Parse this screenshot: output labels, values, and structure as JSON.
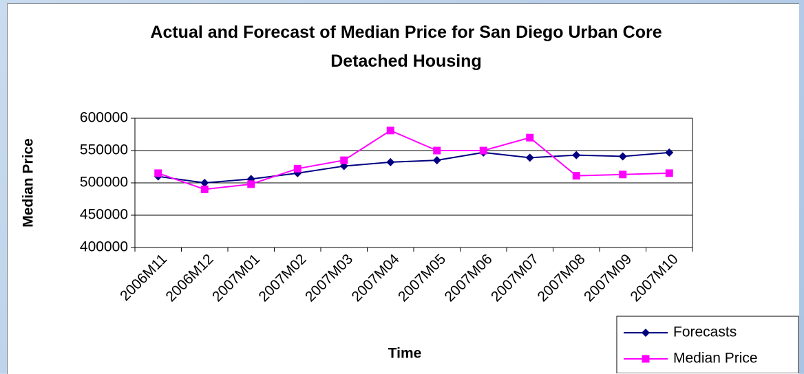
{
  "chart_data": {
    "type": "line",
    "title": "Actual and Forecast of Median Price for San Diego Urban Core Detached Housing",
    "x_label": "Time",
    "y_label": "Median Price",
    "categories": [
      "2006M11",
      "2006M12",
      "2007M01",
      "2007M02",
      "2007M03",
      "2007M04",
      "2007M05",
      "2007M06",
      "2007M07",
      "2007M08",
      "2007M09",
      "2007M10"
    ],
    "series": [
      {
        "name": "Forecasts",
        "color": "#000080",
        "marker": "diamond",
        "values": [
          510000,
          500000,
          506000,
          515000,
          526000,
          532000,
          535000,
          547000,
          539000,
          543000,
          541000,
          547000
        ]
      },
      {
        "name": "Median Price",
        "color": "#ff00ff",
        "marker": "square",
        "values": [
          515000,
          490000,
          498000,
          522000,
          535000,
          581000,
          550000,
          550000,
          570000,
          511000,
          513000,
          515000
        ]
      }
    ],
    "ylim": [
      400000,
      600000
    ],
    "yticks": [
      400000,
      450000,
      500000,
      550000,
      600000
    ],
    "grid": true
  }
}
